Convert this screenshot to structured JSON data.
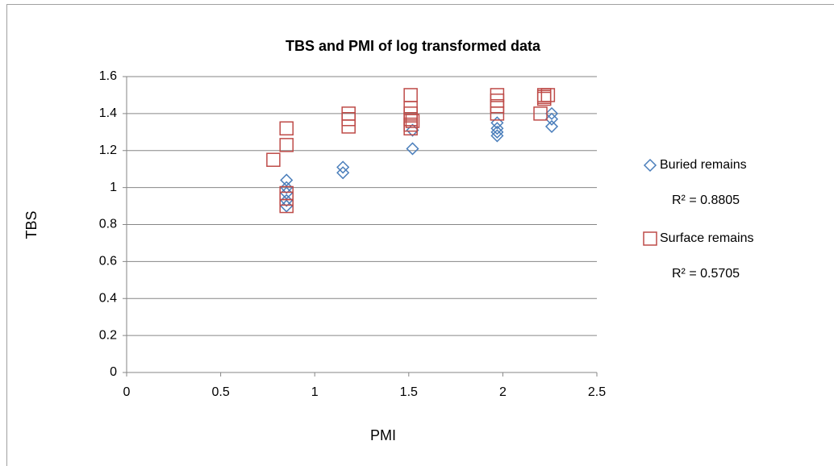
{
  "chart_data": {
    "type": "scatter",
    "title": "TBS and PMI of log transformed data",
    "x_label": "PMI",
    "y_label": "TBS",
    "xlim": [
      0,
      2.5
    ],
    "xticks": [
      0,
      0.5,
      1,
      1.5,
      2,
      2.5
    ],
    "ylim": [
      0,
      1.6
    ],
    "yticks": [
      0,
      0.2,
      0.4,
      0.6,
      0.8,
      1,
      1.2,
      1.4,
      1.6
    ],
    "grid": true,
    "legend": "right",
    "series": [
      {
        "name": "Buried remains",
        "color": "#4a7ebb",
        "marker": "diamond",
        "r_squared_label": "R² = 0.8805",
        "x": [
          0.85,
          0.85,
          0.85,
          0.85,
          0.85,
          1.15,
          1.15,
          1.52,
          1.52,
          1.97,
          1.97,
          1.97,
          1.97,
          2.26,
          2.26,
          2.26
        ],
        "values": [
          1.04,
          1.0,
          0.97,
          0.93,
          0.9,
          1.11,
          1.08,
          1.31,
          1.21,
          1.35,
          1.32,
          1.3,
          1.28,
          1.4,
          1.37,
          1.33
        ]
      },
      {
        "name": "Surface remains",
        "color": "#be4b48",
        "marker": "square",
        "r_squared_label": "R² = 0.5705",
        "x": [
          0.78,
          0.85,
          0.85,
          0.85,
          0.85,
          0.85,
          1.18,
          1.18,
          1.18,
          1.51,
          1.51,
          1.51,
          1.51,
          1.51,
          1.51,
          1.52,
          1.97,
          1.97,
          1.97,
          1.97,
          2.2,
          2.22,
          2.22,
          2.22,
          2.24
        ],
        "values": [
          1.15,
          1.32,
          1.23,
          0.97,
          0.94,
          0.9,
          1.4,
          1.37,
          1.33,
          1.5,
          1.43,
          1.4,
          1.37,
          1.34,
          1.32,
          1.36,
          1.5,
          1.47,
          1.44,
          1.4,
          1.4,
          1.49,
          1.48,
          1.5,
          1.5
        ]
      }
    ]
  }
}
